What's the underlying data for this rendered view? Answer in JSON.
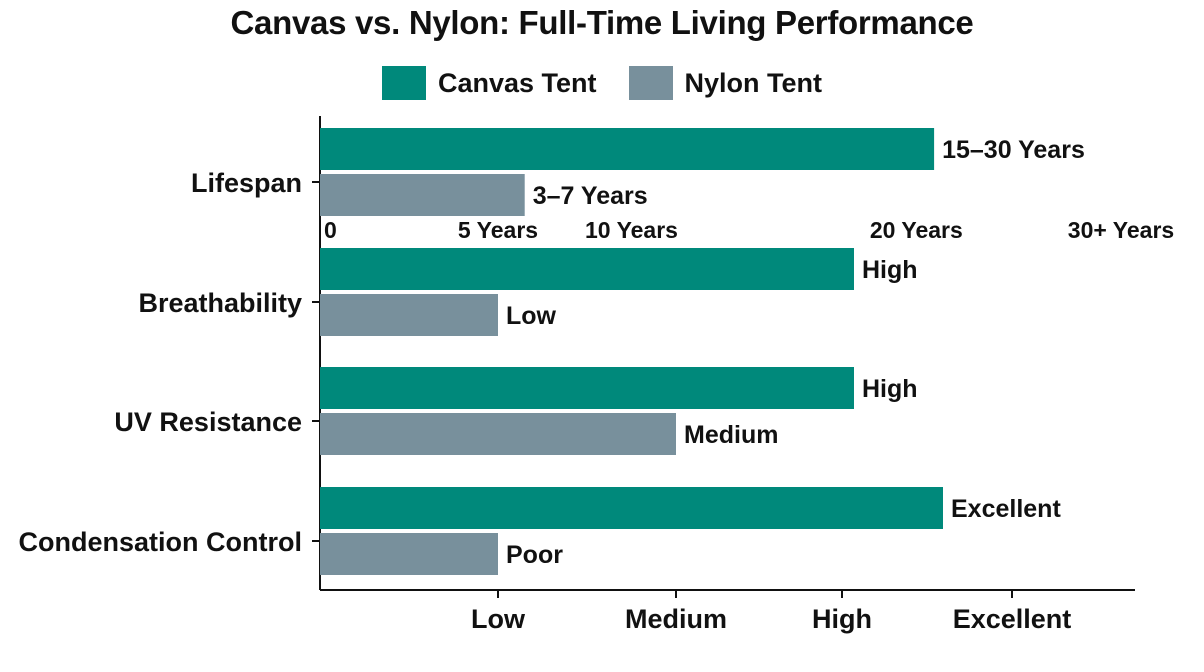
{
  "colors": {
    "canvas": "#00897B",
    "nylon": "#78909C",
    "axis": "#111111"
  },
  "chart_data": {
    "type": "bar",
    "orientation": "horizontal",
    "title": "Canvas vs. Nylon: Full-Time Living Performance",
    "categories": [
      "Lifespan",
      "Breathability",
      "UV Resistance",
      "Condensation Control"
    ],
    "series": [
      {
        "name": "Canvas Tent",
        "values": [
          3.45,
          3.0,
          3.0,
          3.5
        ],
        "labels": [
          "15–30 Years",
          "High",
          "High",
          "Excellent"
        ]
      },
      {
        "name": "Nylon Tent",
        "values": [
          1.15,
          1.0,
          2.0,
          1.0
        ],
        "labels": [
          "3–7 Years",
          "Low",
          "Medium",
          "Poor"
        ]
      }
    ],
    "xaxis": {
      "ticks": [
        1,
        2,
        3,
        4
      ],
      "tick_labels": [
        "Low",
        "Medium",
        "High",
        "Excellent"
      ],
      "xlim": [
        0,
        4.5
      ]
    },
    "lifespan_scale": {
      "ticks": [
        0,
        1.0,
        1.75,
        3.35,
        4.5
      ],
      "tick_labels": [
        "0",
        "5 Years",
        "10 Years",
        "20 Years",
        "30+ Years"
      ]
    },
    "legend": "top-center",
    "grid": false
  }
}
